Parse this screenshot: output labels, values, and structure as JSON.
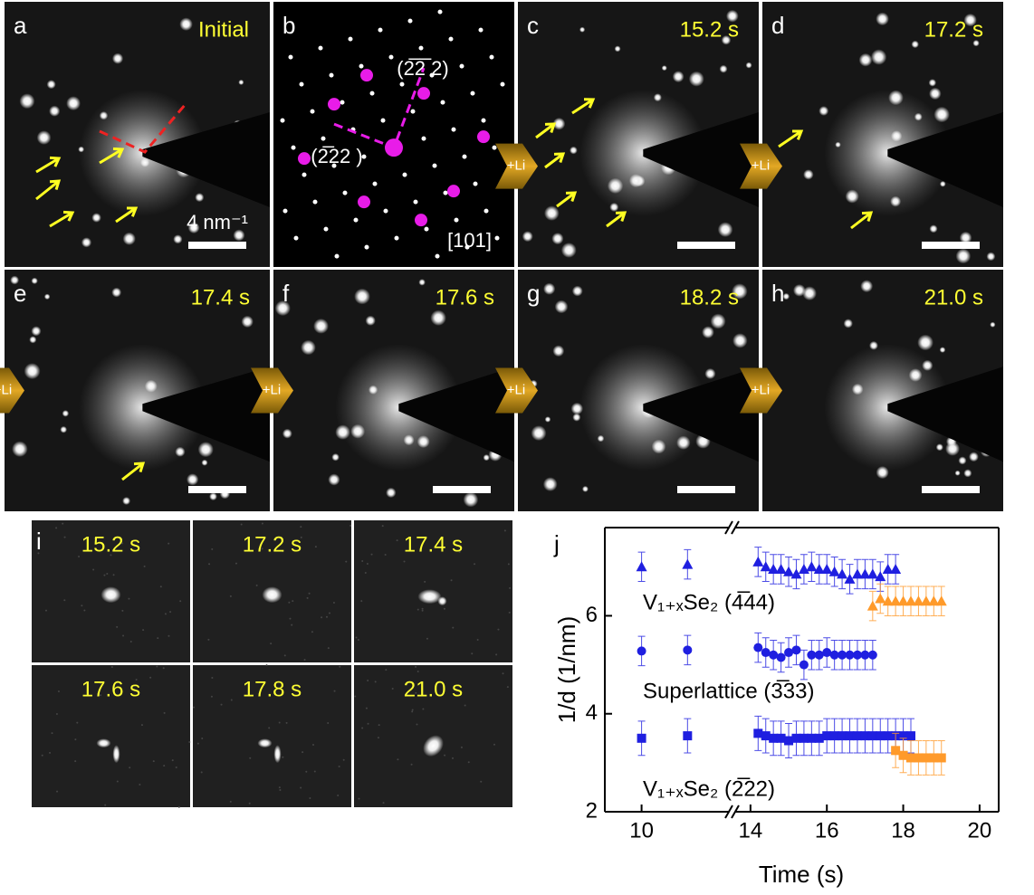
{
  "panels": [
    {
      "label": "a",
      "time": "Initial"
    },
    {
      "label": "b"
    },
    {
      "label": "c",
      "time": "15.2 s"
    },
    {
      "label": "d",
      "time": "17.2 s"
    },
    {
      "label": "e",
      "time": "17.4 s"
    },
    {
      "label": "f",
      "time": "17.6 s"
    },
    {
      "label": "g",
      "time": "18.2 s"
    },
    {
      "label": "h",
      "time": "21.0 s"
    }
  ],
  "scale_bar": "4 nm⁻¹",
  "li_label": "+Li",
  "panel_b": {
    "spots": [
      "(2̅2̅ 2)",
      "(2̅22 )"
    ],
    "zone_axis": "[101]"
  },
  "panel_i": {
    "label": "i",
    "frames": [
      "15.2 s",
      "17.2 s",
      "17.4 s",
      "17.6 s",
      "17.8 s",
      "21.0 s"
    ]
  },
  "chart_data": {
    "type": "scatter",
    "label": "j",
    "xlabel": "Time (s)",
    "ylabel": "1/d (1/nm)",
    "xlim": [
      9.2,
      20.5
    ],
    "xbreak": [
      11.9,
      13.6
    ],
    "xticks": [
      10,
      14,
      16,
      18,
      20
    ],
    "ylim": [
      2,
      7.8
    ],
    "yticks": [
      2,
      4,
      6
    ],
    "annotations": [
      "V₁₊ₓSe₂ (4̅44)",
      "Superlattice (3̅33)",
      "V₁₊ₓSe₂ (2̅22)"
    ],
    "series": [
      {
        "marker": "triangle",
        "color": "#1f1fe0",
        "error": 0.3,
        "x": [
          10,
          11,
          14.2,
          14.4,
          14.6,
          14.8,
          15.0,
          15.2,
          15.4,
          15.6,
          15.8,
          16.0,
          16.2,
          16.4,
          16.6,
          16.8,
          17.0,
          17.2,
          17.4,
          17.6,
          17.8
        ],
        "values": [
          7.0,
          7.05,
          7.1,
          7.0,
          6.95,
          6.95,
          6.9,
          6.85,
          6.95,
          7.0,
          6.95,
          6.95,
          6.9,
          6.85,
          6.75,
          6.85,
          6.85,
          6.85,
          6.8,
          6.95,
          6.95
        ]
      },
      {
        "marker": "triangle",
        "color": "#ff9a2a",
        "error": 0.3,
        "x": [
          17.2,
          17.4,
          17.6,
          17.8,
          18.0,
          18.2,
          18.4,
          18.6,
          18.8,
          19.0
        ],
        "values": [
          6.2,
          6.35,
          6.3,
          6.3,
          6.3,
          6.3,
          6.3,
          6.3,
          6.3,
          6.3
        ]
      },
      {
        "marker": "circle",
        "color": "#1f1fe0",
        "error": 0.3,
        "x": [
          10,
          11,
          14.2,
          14.4,
          14.6,
          14.8,
          15.0,
          15.2,
          15.4,
          15.6,
          15.8,
          16.0,
          16.2,
          16.4,
          16.6,
          16.8,
          17.0,
          17.2
        ],
        "values": [
          5.28,
          5.3,
          5.35,
          5.25,
          5.2,
          5.15,
          5.25,
          5.3,
          5.0,
          5.2,
          5.2,
          5.25,
          5.2,
          5.2,
          5.2,
          5.2,
          5.2,
          5.2
        ]
      },
      {
        "marker": "square",
        "color": "#1f1fe0",
        "error": 0.35,
        "x": [
          10,
          11,
          14.2,
          14.4,
          14.6,
          14.8,
          15.0,
          15.2,
          15.4,
          15.6,
          15.8,
          16.0,
          16.2,
          16.4,
          16.6,
          16.8,
          17.0,
          17.2,
          17.4,
          17.6,
          17.8,
          18.0,
          18.2
        ],
        "values": [
          3.5,
          3.55,
          3.6,
          3.55,
          3.5,
          3.5,
          3.45,
          3.5,
          3.5,
          3.5,
          3.5,
          3.55,
          3.55,
          3.55,
          3.55,
          3.55,
          3.55,
          3.55,
          3.55,
          3.55,
          3.55,
          3.55,
          3.55
        ]
      },
      {
        "marker": "square",
        "color": "#ff9a2a",
        "error": 0.35,
        "x": [
          17.8,
          18.0,
          18.2,
          18.4,
          18.6,
          18.8,
          19.0
        ],
        "values": [
          3.25,
          3.15,
          3.1,
          3.1,
          3.1,
          3.1,
          3.1
        ]
      }
    ]
  }
}
